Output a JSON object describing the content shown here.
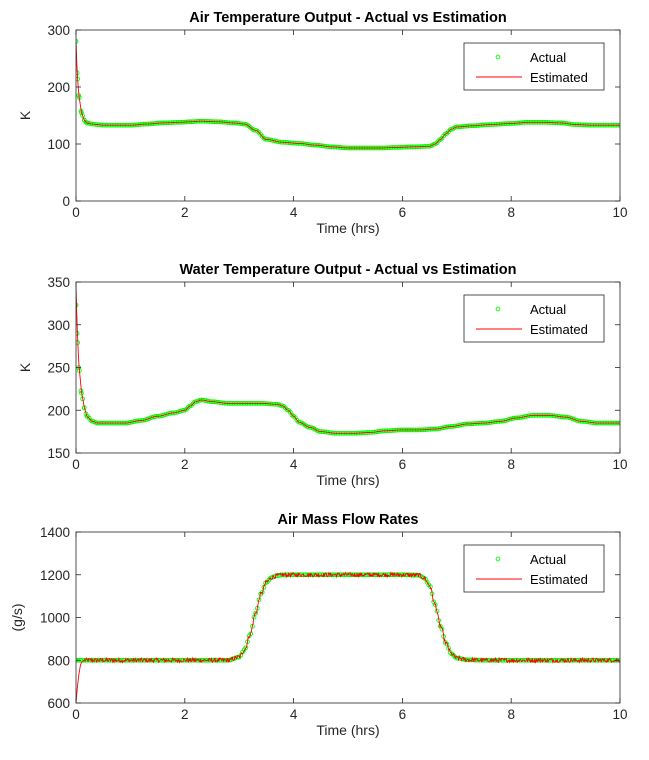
{
  "colors": {
    "actual": "#00ff00",
    "estimated": "#ff0000",
    "axis": "#262626"
  },
  "chart_data": [
    {
      "type": "line",
      "title": "Air Temperature Output - Actual vs Estimation",
      "xlabel": "Time (hrs)",
      "ylabel": "K",
      "xlim": [
        0,
        10
      ],
      "ylim": [
        0,
        300
      ],
      "xticks": [
        0,
        2,
        4,
        6,
        8,
        10
      ],
      "yticks": [
        0,
        100,
        200,
        300
      ],
      "grid": false,
      "legend_position": "top-right",
      "series": [
        {
          "name": "Actual",
          "style": "markers",
          "x": [
            0,
            0.02,
            0.05,
            0.1,
            0.15,
            0.2,
            0.3,
            0.4,
            0.5,
            0.7,
            1.0,
            1.3,
            1.6,
            1.9,
            2.1,
            2.3,
            2.6,
            2.9,
            3.1,
            3.3,
            3.5,
            3.8,
            4.1,
            4.4,
            4.7,
            5.0,
            5.3,
            5.6,
            5.9,
            6.2,
            6.5,
            6.6,
            6.7,
            6.8,
            6.9,
            7.0,
            7.3,
            7.6,
            8.0,
            8.3,
            8.6,
            8.9,
            9.2,
            9.5,
            10.0
          ],
          "y": [
            280,
            225,
            185,
            155,
            142,
            137,
            135,
            134,
            133,
            133,
            133,
            135,
            137,
            138,
            139,
            140,
            139,
            137,
            135,
            124,
            108,
            103,
            101,
            98,
            95,
            93,
            93,
            93,
            94,
            95,
            96,
            100,
            108,
            118,
            126,
            130,
            132,
            134,
            136,
            138,
            138,
            137,
            134,
            133,
            133
          ]
        },
        {
          "name": "Estimated",
          "style": "line",
          "x": [
            0,
            0.02,
            0.05,
            0.1,
            0.15,
            0.2,
            0.3,
            0.4,
            0.5,
            0.7,
            1.0,
            1.3,
            1.6,
            1.9,
            2.1,
            2.3,
            2.6,
            2.9,
            3.1,
            3.3,
            3.5,
            3.8,
            4.1,
            4.4,
            4.7,
            5.0,
            5.3,
            5.6,
            5.9,
            6.2,
            6.5,
            6.6,
            6.7,
            6.8,
            6.9,
            7.0,
            7.3,
            7.6,
            8.0,
            8.3,
            8.6,
            8.9,
            9.2,
            9.5,
            10.0
          ],
          "y": [
            282,
            228,
            187,
            156,
            142,
            137,
            135,
            134,
            133,
            133,
            133,
            135,
            137,
            138,
            139,
            140,
            139,
            137,
            135,
            124,
            108,
            103,
            101,
            98,
            95,
            93,
            93,
            93,
            94,
            95,
            96,
            100,
            108,
            118,
            126,
            130,
            132,
            134,
            136,
            138,
            138,
            137,
            134,
            133,
            133
          ]
        }
      ]
    },
    {
      "type": "line",
      "title": "Water Temperature Output - Actual vs Estimation",
      "xlabel": "Time (hrs)",
      "ylabel": "K",
      "xlim": [
        0,
        10
      ],
      "ylim": [
        150,
        350
      ],
      "xticks": [
        0,
        2,
        4,
        6,
        8,
        10
      ],
      "yticks": [
        150,
        200,
        250,
        300,
        350
      ],
      "grid": false,
      "legend_position": "top-right",
      "series": [
        {
          "name": "Actual",
          "style": "markers",
          "x": [
            0,
            0.02,
            0.05,
            0.1,
            0.15,
            0.2,
            0.3,
            0.4,
            0.6,
            0.9,
            1.2,
            1.5,
            1.8,
            2.0,
            2.1,
            2.2,
            2.3,
            2.5,
            2.8,
            3.1,
            3.4,
            3.7,
            3.8,
            3.9,
            4.0,
            4.1,
            4.3,
            4.5,
            4.8,
            5.1,
            5.4,
            5.7,
            6.0,
            6.3,
            6.6,
            6.9,
            7.2,
            7.5,
            7.8,
            8.1,
            8.4,
            8.7,
            9.0,
            9.3,
            9.6,
            10.0
          ],
          "y": [
            323,
            290,
            250,
            220,
            203,
            193,
            187,
            185,
            185,
            185,
            188,
            193,
            197,
            200,
            205,
            210,
            212,
            210,
            208,
            208,
            208,
            207,
            205,
            200,
            193,
            186,
            180,
            175,
            173,
            173,
            174,
            176,
            177,
            177,
            178,
            181,
            184,
            185,
            187,
            191,
            194,
            194,
            192,
            187,
            185,
            185
          ]
        },
        {
          "name": "Estimated",
          "style": "line",
          "x": [
            0,
            0.02,
            0.05,
            0.1,
            0.15,
            0.2,
            0.3,
            0.4,
            0.6,
            0.9,
            1.2,
            1.5,
            1.8,
            2.0,
            2.1,
            2.2,
            2.3,
            2.5,
            2.8,
            3.1,
            3.4,
            3.7,
            3.8,
            3.9,
            4.0,
            4.1,
            4.3,
            4.5,
            4.8,
            5.1,
            5.4,
            5.7,
            6.0,
            6.3,
            6.6,
            6.9,
            7.2,
            7.5,
            7.8,
            8.1,
            8.4,
            8.7,
            9.0,
            9.3,
            9.6,
            10.0
          ],
          "y": [
            345,
            300,
            255,
            222,
            204,
            193,
            187,
            185,
            185,
            185,
            188,
            193,
            197,
            200,
            205,
            210,
            212,
            210,
            208,
            208,
            208,
            207,
            205,
            200,
            193,
            186,
            180,
            175,
            173,
            173,
            174,
            176,
            177,
            177,
            178,
            181,
            184,
            185,
            187,
            191,
            194,
            194,
            192,
            187,
            185,
            185
          ]
        }
      ]
    },
    {
      "type": "line",
      "title": "Air Mass Flow Rates",
      "xlabel": "Time (hrs)",
      "ylabel": "(g/s)",
      "xlim": [
        0,
        10
      ],
      "ylim": [
        600,
        1400
      ],
      "xticks": [
        0,
        2,
        4,
        6,
        8,
        10
      ],
      "yticks": [
        600,
        800,
        1000,
        1200,
        1400
      ],
      "grid": false,
      "legend_position": "top-right",
      "series": [
        {
          "name": "Actual",
          "style": "markers",
          "x": [
            0,
            0.5,
            1.0,
            1.5,
            2.0,
            2.5,
            2.8,
            3.0,
            3.1,
            3.2,
            3.3,
            3.4,
            3.5,
            3.6,
            3.7,
            3.8,
            3.9,
            4.0,
            4.5,
            5.0,
            5.5,
            6.0,
            6.3,
            6.4,
            6.5,
            6.6,
            6.7,
            6.8,
            6.9,
            7.0,
            7.2,
            7.5,
            8.0,
            8.5,
            9.0,
            9.5,
            10.0
          ],
          "y": [
            800,
            800,
            800,
            800,
            800,
            800,
            800,
            815,
            850,
            920,
            1020,
            1110,
            1165,
            1188,
            1196,
            1199,
            1200,
            1200,
            1200,
            1200,
            1200,
            1200,
            1198,
            1185,
            1150,
            1060,
            960,
            880,
            830,
            810,
            802,
            800,
            800,
            800,
            800,
            800,
            800
          ]
        },
        {
          "name": "Estimated",
          "style": "line",
          "x": [
            0,
            0.02,
            0.05,
            0.08,
            0.1,
            0.15,
            0.2,
            0.5,
            1.0,
            1.5,
            2.0,
            2.5,
            2.8,
            3.0,
            3.1,
            3.2,
            3.3,
            3.4,
            3.5,
            3.6,
            3.7,
            3.8,
            3.9,
            4.0,
            4.5,
            5.0,
            5.5,
            6.0,
            6.3,
            6.4,
            6.5,
            6.6,
            6.7,
            6.8,
            6.9,
            7.0,
            7.2,
            7.5,
            8.0,
            8.5,
            9.0,
            9.5,
            10.0
          ],
          "y": [
            600,
            660,
            730,
            775,
            790,
            800,
            800,
            800,
            800,
            800,
            800,
            800,
            800,
            815,
            850,
            920,
            1020,
            1110,
            1165,
            1188,
            1196,
            1199,
            1200,
            1200,
            1200,
            1200,
            1200,
            1200,
            1198,
            1185,
            1150,
            1060,
            960,
            880,
            830,
            810,
            802,
            800,
            800,
            800,
            800,
            800,
            800
          ],
          "noise_amplitude": 10
        }
      ]
    }
  ]
}
